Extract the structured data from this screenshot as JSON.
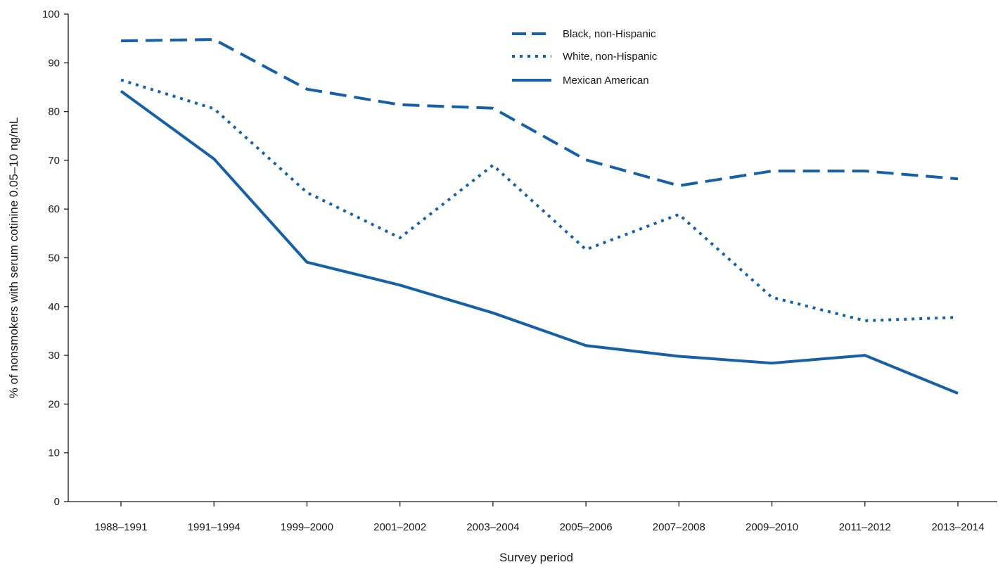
{
  "chart_data": {
    "type": "line",
    "xlabel": "Survey period",
    "ylabel": "% of nonsmokers with serum cotinine 0.05–10 ng/mL",
    "categories": [
      "1988–1991",
      "1991–1994",
      "1999–2000",
      "2001–2002",
      "2003–2004",
      "2005–2006",
      "2007–2008",
      "2009–2010",
      "2011–2012",
      "2013–2014"
    ],
    "ylim": [
      0,
      100
    ],
    "yticks": [
      0,
      10,
      20,
      30,
      40,
      50,
      60,
      70,
      80,
      90,
      100
    ],
    "grid": false,
    "legend_position": "top-right",
    "series": [
      {
        "name": "Black, non-Hispanic",
        "style": "dashed",
        "color": "#1660a8",
        "values": [
          94.5,
          94.8,
          84.6,
          81.4,
          80.7,
          70.1,
          64.8,
          67.8,
          67.8,
          66.2
        ]
      },
      {
        "name": "White, non-Hispanic",
        "style": "dotted",
        "color": "#1660a8",
        "values": [
          86.5,
          80.6,
          63.4,
          54.1,
          69.0,
          51.7,
          58.9,
          41.9,
          37.1,
          37.8
        ]
      },
      {
        "name": "Mexican American",
        "style": "solid",
        "color": "#1660a8",
        "values": [
          84.2,
          70.3,
          49.1,
          44.4,
          38.7,
          32.0,
          29.8,
          28.4,
          30.0,
          22.2
        ]
      }
    ]
  }
}
